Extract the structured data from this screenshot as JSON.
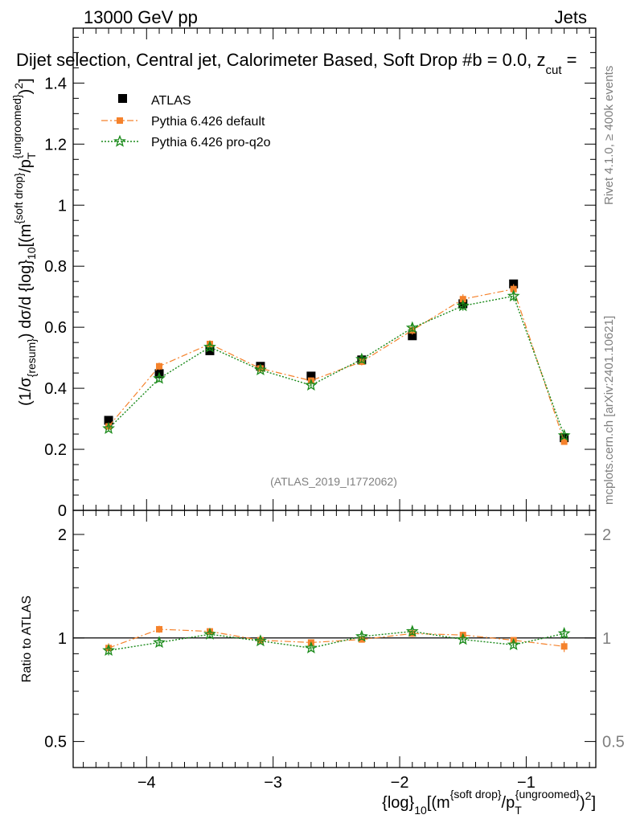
{
  "header": {
    "left": "13000 GeV pp",
    "right": "Jets",
    "title": "Dijet selection, Central jet, Calorimeter Based, Soft Drop #b = 0.0, z",
    "title_sub": "cut",
    "title_end": " ="
  },
  "side": {
    "rivet": "Rivet 4.1.0, ≥ 400k events",
    "mcplots": "mcplots.cern.ch [arXiv:2401.10621]"
  },
  "watermark": "(ATLAS_2019_I1772062)",
  "ylabel_main": {
    "p1": "(1/σ",
    "p1sub": "{resum}",
    "p2": ") dσ/d {log}",
    "p2sub": "10",
    "p3": "[(m",
    "p3sup": "{soft drop}",
    "p4": "/p",
    "p4sub": "T",
    "p4sup": "{ungroomed}",
    "p5": ")",
    "p5sup": "2",
    "p6": "]"
  },
  "ylabel_ratio": "Ratio to ATLAS",
  "xlabel": {
    "p1": "{log}",
    "p1sub": "10",
    "p2": "[(m",
    "p2sup": "{soft drop}",
    "p3": "/p",
    "p3sub": "T",
    "p3sup": "{ungroomed}",
    "p4": ")",
    "p4sup": "2",
    "p5": "]"
  },
  "legend": [
    {
      "label": "ATLAS"
    },
    {
      "label": "Pythia 6.426 default"
    },
    {
      "label": "Pythia 6.426 pro-q2o"
    }
  ],
  "colors": {
    "data": "#000000",
    "default": "#f5822c",
    "proq2o": "#1a8a1a"
  },
  "chart_data": {
    "type": "scatter",
    "x": [
      -4.3,
      -3.9,
      -3.5,
      -3.1,
      -2.7,
      -2.3,
      -1.9,
      -1.5,
      -1.1,
      -0.7
    ],
    "xlim": [
      -4.58,
      -0.45
    ],
    "xticks": [
      -4,
      -3,
      -2,
      -1
    ],
    "xtick_labels": [
      "−4",
      "−3",
      "−2",
      "−1"
    ],
    "main": {
      "ylim": [
        0,
        1.58
      ],
      "yticks": [
        0,
        0.2,
        0.4,
        0.6,
        0.8,
        1,
        1.2,
        1.4
      ],
      "ytick_labels": [
        "0",
        "0.2",
        "0.4",
        "0.6",
        "0.8",
        "1",
        "1.2",
        "1.4"
      ],
      "series": [
        {
          "name": "ATLAS",
          "values": [
            0.295,
            0.448,
            0.523,
            0.472,
            0.44,
            0.493,
            0.572,
            0.677,
            0.742,
            0.238
          ],
          "errors": [
            0.006,
            0.006,
            0.006,
            0.006,
            0.006,
            0.006,
            0.006,
            0.006,
            0.006,
            0.006
          ]
        },
        {
          "name": "Pythia 6.426 default",
          "values": [
            0.275,
            0.472,
            0.545,
            0.465,
            0.425,
            0.487,
            0.59,
            0.692,
            0.725,
            0.225
          ],
          "errors": [
            0.01,
            0.012,
            0.012,
            0.01,
            0.01,
            0.012,
            0.014,
            0.016,
            0.016,
            0.008
          ]
        },
        {
          "name": "Pythia 6.426 pro-q2o",
          "values": [
            0.268,
            0.432,
            0.535,
            0.46,
            0.41,
            0.495,
            0.598,
            0.67,
            0.702,
            0.245
          ],
          "errors": [
            0.01,
            0.012,
            0.012,
            0.01,
            0.01,
            0.012,
            0.014,
            0.016,
            0.016,
            0.008
          ]
        }
      ]
    },
    "ratio": {
      "ylim": [
        0.42,
        2.35
      ],
      "log": true,
      "yticks": [
        0.5,
        1,
        2
      ],
      "ytick_labels": [
        "0.5",
        "1",
        "2"
      ],
      "series": [
        {
          "name": "Pythia 6.426 default",
          "values": [
            0.935,
            1.06,
            1.045,
            0.985,
            0.97,
            0.99,
            1.03,
            1.02,
            0.985,
            0.945
          ],
          "errors": [
            0.03,
            0.025,
            0.022,
            0.02,
            0.02,
            0.02,
            0.022,
            0.022,
            0.02,
            0.035
          ]
        },
        {
          "name": "Pythia 6.426 pro-q2o",
          "values": [
            0.92,
            0.97,
            1.025,
            0.98,
            0.935,
            1.01,
            1.045,
            0.99,
            0.955,
            1.03
          ],
          "errors": [
            0.03,
            0.025,
            0.022,
            0.02,
            0.02,
            0.022,
            0.025,
            0.022,
            0.02,
            0.035
          ]
        }
      ]
    }
  }
}
